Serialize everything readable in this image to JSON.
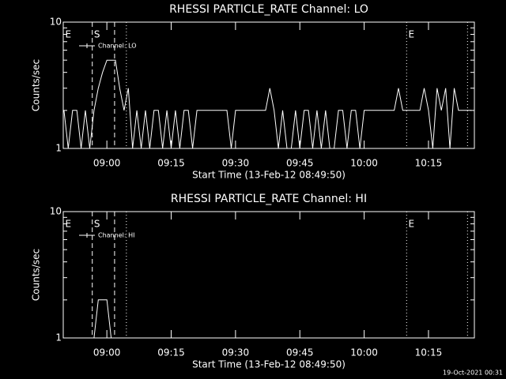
{
  "chart_data": [
    {
      "type": "line",
      "title": "RHESSI PARTICLE_RATE Channel: LO",
      "xlabel": "Start Time (13-Feb-12 08:49:50)",
      "ylabel": "Counts/sec",
      "ylog": true,
      "ylim": [
        1,
        10
      ],
      "yticks": [
        1,
        10
      ],
      "yminor": [
        2,
        3,
        4,
        5,
        6,
        7,
        8,
        9
      ],
      "xlim": [
        529.83,
        625.7
      ],
      "xticks": [
        {
          "value": 540,
          "label": "09:00"
        },
        {
          "value": 555,
          "label": "09:15"
        },
        {
          "value": 570,
          "label": "09:30"
        },
        {
          "value": 585,
          "label": "09:45"
        },
        {
          "value": 600,
          "label": "10:00"
        },
        {
          "value": 615,
          "label": "10:15"
        }
      ],
      "vlines": [
        {
          "x": 536.6,
          "style": "dashed"
        },
        {
          "x": 541.8,
          "style": "dashed"
        },
        {
          "x": 544.55,
          "style": "dotted"
        },
        {
          "x": 609.9,
          "style": "dotted"
        },
        {
          "x": 624.1,
          "style": "dotted"
        }
      ],
      "annotations": [
        {
          "text": "E",
          "x": 530.3
        },
        {
          "text": "S",
          "x": 537.0
        },
        {
          "text": "E",
          "x": 610.3
        }
      ],
      "series": [
        {
          "name": "Channel: LO",
          "color": "#ffffff",
          "x": [
            530,
            531,
            532,
            533,
            534,
            535,
            536,
            537,
            538,
            539,
            540,
            541,
            542,
            543,
            544,
            545,
            546,
            547,
            548,
            549,
            550,
            551,
            552,
            553,
            554,
            555,
            556,
            557,
            558,
            559,
            560,
            561,
            562,
            563,
            564,
            565,
            566,
            567,
            568,
            569,
            570,
            571,
            572,
            573,
            574,
            575,
            576,
            577,
            578,
            579,
            580,
            581,
            582,
            583,
            584,
            585,
            586,
            587,
            588,
            589,
            590,
            591,
            592,
            593,
            594,
            595,
            596,
            597,
            598,
            599,
            600,
            601,
            602,
            603,
            604,
            605,
            606,
            607,
            608,
            609,
            610,
            611,
            612,
            613,
            614,
            615,
            616,
            617,
            618,
            619,
            620,
            621,
            622,
            623,
            624,
            625
          ],
          "values": [
            2,
            1,
            2,
            2,
            1,
            2,
            1,
            2,
            3,
            4,
            5,
            5,
            5,
            3,
            2,
            3,
            1,
            2,
            1,
            2,
            1,
            2,
            2,
            1,
            2,
            1,
            2,
            1,
            2,
            2,
            1,
            2,
            2,
            2,
            2,
            2,
            2,
            2,
            2,
            1,
            2,
            2,
            2,
            2,
            2,
            2,
            2,
            2,
            3,
            2,
            1,
            2,
            1,
            1,
            2,
            1,
            2,
            2,
            1,
            2,
            1,
            2,
            1,
            1,
            2,
            2,
            1,
            2,
            2,
            1,
            2,
            2,
            2,
            2,
            2,
            2,
            2,
            2,
            3,
            2,
            2,
            2,
            2,
            2,
            3,
            2,
            1,
            3,
            2,
            3,
            1,
            3,
            2,
            2,
            2,
            2
          ]
        }
      ]
    },
    {
      "type": "line",
      "title": "RHESSI PARTICLE_RATE Channel: HI",
      "xlabel": "Start Time (13-Feb-12 08:49:50)",
      "ylabel": "Counts/sec",
      "ylog": true,
      "ylim": [
        1,
        10
      ],
      "yticks": [
        1,
        10
      ],
      "yminor": [
        2,
        3,
        4,
        5,
        6,
        7,
        8,
        9
      ],
      "xlim": [
        529.83,
        625.7
      ],
      "xticks": [
        {
          "value": 540,
          "label": "09:00"
        },
        {
          "value": 555,
          "label": "09:15"
        },
        {
          "value": 570,
          "label": "09:30"
        },
        {
          "value": 585,
          "label": "09:45"
        },
        {
          "value": 600,
          "label": "10:00"
        },
        {
          "value": 615,
          "label": "10:15"
        }
      ],
      "vlines": [
        {
          "x": 536.6,
          "style": "dashed"
        },
        {
          "x": 541.8,
          "style": "dashed"
        },
        {
          "x": 544.55,
          "style": "dotted"
        },
        {
          "x": 609.9,
          "style": "dotted"
        },
        {
          "x": 624.1,
          "style": "dotted"
        }
      ],
      "annotations": [
        {
          "text": "E",
          "x": 530.3
        },
        {
          "text": "S",
          "x": 537.0
        },
        {
          "text": "E",
          "x": 610.3
        }
      ],
      "series": [
        {
          "name": "Channel: HI",
          "color": "#ffffff",
          "x": [
            530,
            531,
            532,
            533,
            534,
            535,
            536,
            537,
            538,
            539,
            540,
            541,
            542,
            543,
            544,
            545,
            546,
            547,
            548,
            549,
            550,
            551,
            552,
            553,
            554,
            555,
            556,
            557,
            558,
            559,
            560,
            561,
            562,
            563,
            564,
            565,
            566,
            567,
            568,
            569,
            570,
            571,
            572,
            573,
            574,
            575,
            576,
            577,
            578,
            579,
            580,
            581,
            582,
            583,
            584,
            585,
            586,
            587,
            588,
            589,
            590,
            591,
            592,
            593,
            594,
            595,
            596,
            597,
            598,
            599,
            600,
            601,
            602,
            603,
            604,
            605,
            606,
            607,
            608,
            609,
            610,
            611,
            612,
            613,
            614,
            615,
            616,
            617,
            618,
            619,
            620,
            621,
            622,
            623,
            624,
            625
          ],
          "values": [
            1,
            1,
            1,
            1,
            1,
            1,
            1,
            1,
            2,
            2,
            2,
            1,
            1,
            1,
            1,
            1,
            1,
            1,
            1,
            1,
            1,
            1,
            1,
            1,
            1,
            1,
            1,
            1,
            1,
            1,
            1,
            1,
            1,
            1,
            1,
            1,
            1,
            1,
            1,
            1,
            1,
            1,
            1,
            1,
            1,
            1,
            1,
            1,
            1,
            1,
            1,
            1,
            1,
            1,
            1,
            1,
            1,
            1,
            1,
            1,
            1,
            1,
            1,
            1,
            1,
            1,
            1,
            1,
            1,
            1,
            1,
            1,
            1,
            1,
            1,
            1,
            1,
            1,
            1,
            1,
            1,
            1,
            1,
            1,
            1,
            1,
            1,
            1,
            1,
            1,
            1,
            1,
            1,
            1,
            1,
            1
          ]
        }
      ]
    }
  ],
  "footer": "19-Oct-2021 00:31"
}
